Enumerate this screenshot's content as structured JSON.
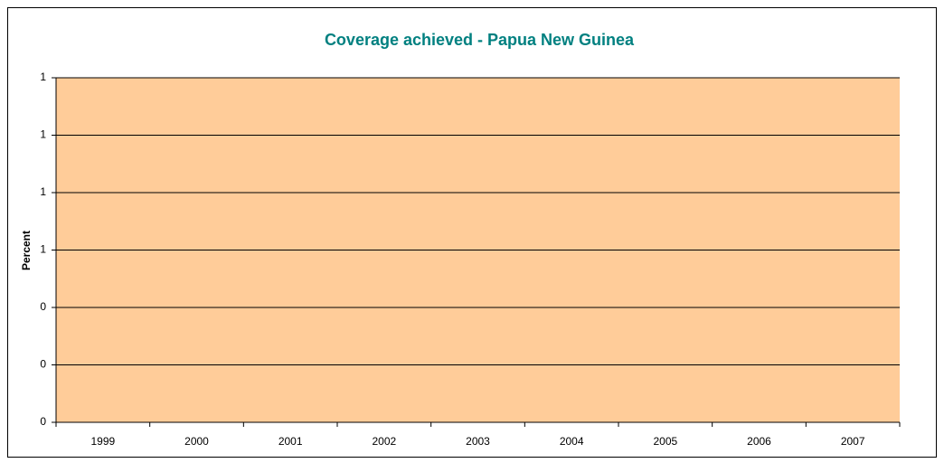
{
  "chart_data": {
    "type": "line",
    "title": "Coverage achieved - Papua New Guinea",
    "y_label": "Percent",
    "categories": [
      "1999",
      "2000",
      "2001",
      "2002",
      "2003",
      "2004",
      "2005",
      "2006",
      "2007"
    ],
    "ylim": [
      0,
      1.2
    ],
    "yticks": [
      0,
      {
        "value": 0.2,
        "label": "0"
      },
      {
        "value": 0.4,
        "label": "0"
      },
      {
        "value": 0.6,
        "label": "1"
      },
      1,
      {
        "value": 0.8,
        "label": "1"
      },
      {
        "value": 1.2,
        "label": "1"
      }
    ],
    "grid": true,
    "plot_background": "#ffcc99"
  }
}
